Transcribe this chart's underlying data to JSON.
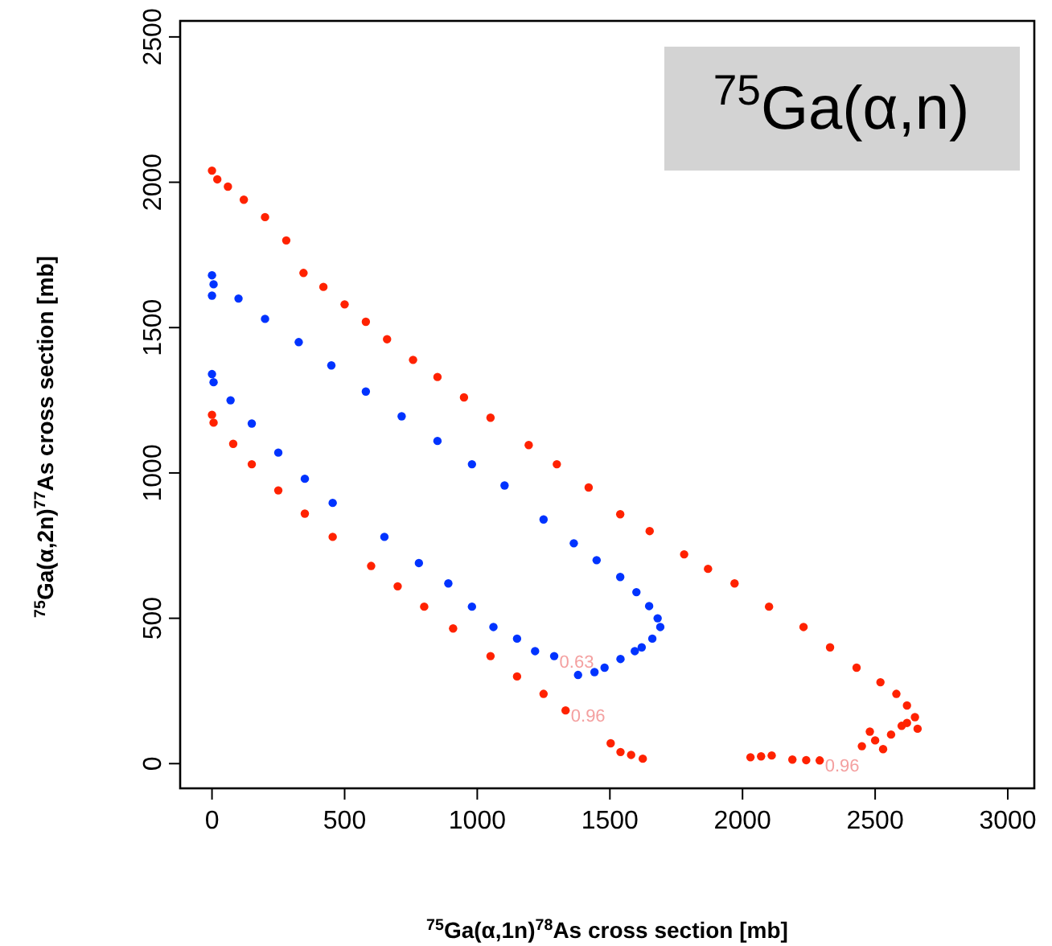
{
  "chart_data": {
    "type": "scatter",
    "title": "$^{75}$Ga(α,n)",
    "xlabel": "$^{75}$Ga(α,1n)$^{78}$As cross section [mb]",
    "ylabel": "$^{75}$Ga(α,2n)$^{77}$As cross section [mb]",
    "xlim": [
      -120,
      3100
    ],
    "ylim": [
      -85,
      2555
    ],
    "xticks": [
      0,
      500,
      1000,
      1500,
      2000,
      2500,
      3000
    ],
    "yticks": [
      0,
      500,
      1000,
      1500,
      2000,
      2500
    ],
    "grid": false,
    "marker": "circle",
    "series": [
      {
        "color": "#ff2200",
        "x": [
          0,
          20,
          60,
          120,
          200,
          280,
          345,
          420,
          500,
          580,
          660,
          758,
          850,
          950,
          1050,
          1194,
          1300,
          1420,
          1539,
          1650,
          1780,
          1870,
          1970,
          2100,
          2230,
          2330,
          2430,
          2520,
          2580,
          2620,
          2650,
          2600,
          2560,
          2500,
          2450,
          2530,
          2620,
          2660,
          2480,
          2291,
          2240,
          2188,
          2110,
          2070,
          2030,
          1624,
          1580,
          1540,
          1503,
          1333,
          1250,
          1150,
          1050,
          909,
          800,
          700,
          600,
          455,
          350,
          250,
          150,
          80,
          6,
          0
        ],
        "values": [
          2040,
          2010,
          1985,
          1940,
          1880,
          1800,
          1688,
          1640,
          1580,
          1520,
          1460,
          1389,
          1330,
          1260,
          1190,
          1096,
          1030,
          950,
          858,
          800,
          720,
          670,
          620,
          540,
          470,
          400,
          330,
          280,
          240,
          200,
          160,
          130,
          100,
          80,
          60,
          50,
          140,
          120,
          110,
          11,
          12,
          14,
          28,
          25,
          22,
          17,
          30,
          40,
          70,
          183,
          240,
          300,
          370,
          465,
          540,
          610,
          680,
          780,
          860,
          940,
          1030,
          1100,
          1173,
          1200
        ]
      },
      {
        "color": "#0033ff",
        "x": [
          0,
          6,
          0,
          100,
          200,
          327,
          450,
          580,
          715,
          850,
          980,
          1103,
          1250,
          1364,
          1450,
          1539,
          1600,
          1648,
          1680,
          1690,
          1660,
          1620,
          1594,
          1540,
          1480,
          1442,
          1380,
          1290,
          1218,
          1150,
          1061,
          980,
          891,
          780,
          650,
          455,
          350,
          250,
          150,
          70,
          6,
          0
        ],
        "values": [
          1680,
          1649,
          1610,
          1600,
          1530,
          1450,
          1370,
          1280,
          1195,
          1110,
          1030,
          957,
          840,
          758,
          700,
          642,
          590,
          542,
          500,
          470,
          430,
          400,
          387,
          360,
          330,
          315,
          305,
          370,
          387,
          430,
          470,
          540,
          620,
          690,
          780,
          897,
          980,
          1070,
          1170,
          1250,
          1312,
          1340
        ]
      }
    ],
    "annotations": [
      {
        "text": "0.63",
        "x": 1290,
        "y": 370
      },
      {
        "text": "0.96",
        "x": 1333,
        "y": 183
      },
      {
        "text": "0.96",
        "x": 2291,
        "y": 11
      }
    ]
  }
}
